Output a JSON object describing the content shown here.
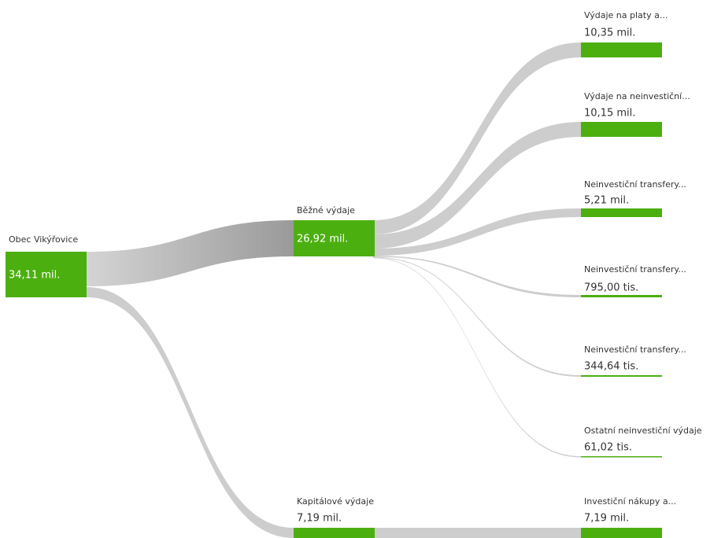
{
  "nodes": [
    {
      "label": "Obec Vikýřovice",
      "value": "34,11 mil."
    },
    {
      "label": "Běžné výdaje",
      "value": "26,92 mil."
    },
    {
      "label": "Kapitálové výdaje",
      "value": "7,19 mil."
    },
    {
      "label": "Výdaje na platy a...",
      "value": "10,35 mil."
    },
    {
      "label": "Výdaje na neinvestiční...",
      "value": "10,15 mil."
    },
    {
      "label": "Neinvestiční transfery...",
      "value": "5,21 mil."
    },
    {
      "label": "Neinvestiční transfery...",
      "value": "795,00 tis."
    },
    {
      "label": "Neinvestiční transfery...",
      "value": "344,64 tis."
    },
    {
      "label": "Ostatní neinvestiční výdaje",
      "value": "61,02 tis."
    },
    {
      "label": "Investiční nákupy a...",
      "value": "7,19 mil."
    }
  ]
}
